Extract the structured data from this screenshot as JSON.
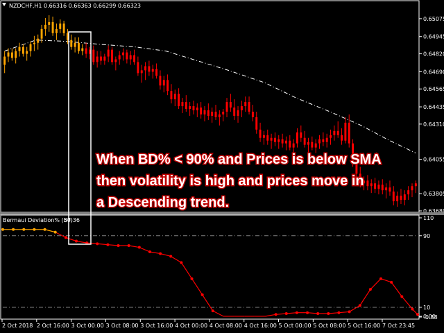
{
  "chart_header": {
    "symbol": "NZDCHF,H1",
    "ohlc": "0.66316 0.66363 0.66299 0.66323"
  },
  "indicator_header": {
    "name": "Bermaui Deviation% (50)",
    "value": "87.36"
  },
  "annotation": {
    "line1": "When BD% < 90% and Prices is below SMA",
    "line2": "then volatility is high and prices move in",
    "line3": "a Descending trend."
  },
  "colors": {
    "background": "#000000",
    "grid": "#ffffff",
    "candle_bull_before": "#ffa500",
    "candle_after": "#ff0000",
    "sma_line": "#ffffff",
    "indicator_high": "#ffa500",
    "indicator_low": "#ff0000",
    "level_line": "#808080"
  },
  "chart_data": [
    {
      "type": "candlestick",
      "title": "NZDCHF,H1",
      "y_ticks": [
        "0.65075",
        "0.64945",
        "0.64820",
        "0.64690",
        "0.64565",
        "0.64435",
        "0.64310",
        "0.64055",
        "0.63805",
        "0.63680"
      ],
      "x_ticks": [
        "2 Oct 2018",
        "2 Oct 16:00",
        "3 Oct 00:00",
        "3 Oct 08:00",
        "3 Oct 16:00",
        "4 Oct 00:00",
        "4 Oct 08:00",
        "4 Oct 16:00",
        "5 Oct 00:00",
        "5 Oct 08:00",
        "5 Oct 16:00",
        "7 Oct 23:45"
      ],
      "ylim": [
        0.6368,
        0.6514
      ],
      "sma_period": 50,
      "sma": [
        [
          0,
          0.6484
        ],
        [
          12,
          0.6492
        ],
        [
          24,
          0.6491
        ],
        [
          36,
          0.6489
        ],
        [
          50,
          0.6487
        ],
        [
          62,
          0.6484
        ],
        [
          74,
          0.6477
        ],
        [
          86,
          0.647
        ],
        [
          100,
          0.6461
        ],
        [
          112,
          0.645
        ],
        [
          125,
          0.644
        ],
        [
          137,
          0.643
        ],
        [
          148,
          0.6419
        ],
        [
          158,
          0.641
        ]
      ],
      "candles_ohlc": [
        [
          0.6474,
          0.6484,
          0.6468,
          0.648
        ],
        [
          0.648,
          0.6486,
          0.6476,
          0.6483
        ],
        [
          0.6483,
          0.6486,
          0.6477,
          0.6479
        ],
        [
          0.6479,
          0.6486,
          0.6475,
          0.6484
        ],
        [
          0.6484,
          0.649,
          0.648,
          0.6487
        ],
        [
          0.6487,
          0.6489,
          0.648,
          0.6482
        ],
        [
          0.6482,
          0.6487,
          0.6477,
          0.6484
        ],
        [
          0.6484,
          0.6491,
          0.648,
          0.6489
        ],
        [
          0.6489,
          0.6495,
          0.6484,
          0.649
        ],
        [
          0.649,
          0.6496,
          0.6485,
          0.6493
        ],
        [
          0.6493,
          0.6503,
          0.649,
          0.65
        ],
        [
          0.65,
          0.6508,
          0.6495,
          0.6503
        ],
        [
          0.6503,
          0.651,
          0.6498,
          0.6505
        ],
        [
          0.6505,
          0.6509,
          0.6495,
          0.6497
        ],
        [
          0.6497,
          0.6504,
          0.6492,
          0.65
        ],
        [
          0.65,
          0.6507,
          0.6497,
          0.6504
        ],
        [
          0.6504,
          0.6506,
          0.6495,
          0.6497
        ],
        [
          0.6497,
          0.65,
          0.6489,
          0.6492
        ],
        [
          0.6492,
          0.6496,
          0.6485,
          0.6487
        ],
        [
          0.6487,
          0.6494,
          0.6483,
          0.649
        ],
        [
          0.649,
          0.6494,
          0.6482,
          0.6484
        ],
        [
          0.6484,
          0.6489,
          0.6481,
          0.6486
        ],
        [
          0.6486,
          0.649,
          0.6479,
          0.6482
        ],
        [
          0.6482,
          0.6487,
          0.6478,
          0.6485
        ],
        [
          0.6485,
          0.6488,
          0.6474,
          0.6476
        ],
        [
          0.6476,
          0.6484,
          0.6472,
          0.648
        ],
        [
          0.648,
          0.6484,
          0.6474,
          0.6477
        ],
        [
          0.6477,
          0.6482,
          0.6474,
          0.648
        ],
        [
          0.648,
          0.6488,
          0.6476,
          0.6485
        ],
        [
          0.6485,
          0.6487,
          0.6474,
          0.6476
        ],
        [
          0.6476,
          0.648,
          0.647,
          0.6478
        ],
        [
          0.6478,
          0.6484,
          0.6474,
          0.6481
        ],
        [
          0.6481,
          0.6486,
          0.6477,
          0.6483
        ],
        [
          0.6483,
          0.6485,
          0.6475,
          0.6478
        ],
        [
          0.6478,
          0.6484,
          0.6474,
          0.6481
        ],
        [
          0.6481,
          0.6485,
          0.6474,
          0.6476
        ],
        [
          0.6476,
          0.648,
          0.6466,
          0.6468
        ],
        [
          0.6468,
          0.6474,
          0.6461,
          0.647
        ],
        [
          0.647,
          0.6476,
          0.6463,
          0.6473
        ],
        [
          0.6473,
          0.6477,
          0.6466,
          0.6469
        ],
        [
          0.6469,
          0.6474,
          0.6464,
          0.6471
        ],
        [
          0.6471,
          0.6475,
          0.6464,
          0.6466
        ],
        [
          0.6466,
          0.647,
          0.6456,
          0.6459
        ],
        [
          0.6459,
          0.6466,
          0.6454,
          0.6463
        ],
        [
          0.6463,
          0.6467,
          0.6452,
          0.6455
        ],
        [
          0.6455,
          0.646,
          0.6446,
          0.6449
        ],
        [
          0.6449,
          0.6456,
          0.6444,
          0.6453
        ],
        [
          0.6453,
          0.6457,
          0.6442,
          0.6444
        ],
        [
          0.6444,
          0.645,
          0.6439,
          0.6447
        ],
        [
          0.6447,
          0.6452,
          0.644,
          0.6442
        ],
        [
          0.6442,
          0.6447,
          0.6437,
          0.6444
        ],
        [
          0.6444,
          0.6448,
          0.6438,
          0.6441
        ],
        [
          0.6441,
          0.6446,
          0.6436,
          0.6443
        ],
        [
          0.6443,
          0.6447,
          0.6435,
          0.6438
        ],
        [
          0.6438,
          0.6444,
          0.6433,
          0.6441
        ],
        [
          0.6441,
          0.6446,
          0.6434,
          0.6437
        ],
        [
          0.6437,
          0.6443,
          0.6432,
          0.644
        ],
        [
          0.644,
          0.6445,
          0.6434,
          0.6436
        ],
        [
          0.6436,
          0.6441,
          0.643,
          0.6438
        ],
        [
          0.6438,
          0.6442,
          0.6433,
          0.644
        ],
        [
          0.644,
          0.645,
          0.6436,
          0.6447
        ],
        [
          0.6447,
          0.6453,
          0.644,
          0.6443
        ],
        [
          0.6443,
          0.6449,
          0.6434,
          0.6437
        ],
        [
          0.6437,
          0.6444,
          0.6432,
          0.6441
        ],
        [
          0.6441,
          0.6448,
          0.6436,
          0.6444
        ],
        [
          0.6444,
          0.6451,
          0.644,
          0.6447
        ],
        [
          0.6447,
          0.6451,
          0.6438,
          0.644
        ],
        [
          0.644,
          0.6445,
          0.6433,
          0.6436
        ],
        [
          0.6436,
          0.644,
          0.6424,
          0.6427
        ],
        [
          0.6427,
          0.6432,
          0.6418,
          0.6421
        ],
        [
          0.6421,
          0.6426,
          0.6416,
          0.6423
        ],
        [
          0.6423,
          0.6427,
          0.6416,
          0.6419
        ],
        [
          0.6419,
          0.6424,
          0.6413,
          0.6421
        ],
        [
          0.6421,
          0.6425,
          0.6415,
          0.6418
        ],
        [
          0.6418,
          0.6423,
          0.6413,
          0.642
        ],
        [
          0.642,
          0.6424,
          0.6414,
          0.6417
        ],
        [
          0.6417,
          0.6422,
          0.6412,
          0.6419
        ],
        [
          0.6419,
          0.6423,
          0.6412,
          0.6414
        ],
        [
          0.6414,
          0.642,
          0.641,
          0.6417
        ],
        [
          0.6417,
          0.6428,
          0.6414,
          0.6425
        ],
        [
          0.6425,
          0.643,
          0.6418,
          0.6421
        ],
        [
          0.6421,
          0.6426,
          0.6414,
          0.6416
        ],
        [
          0.6416,
          0.6421,
          0.641,
          0.6418
        ],
        [
          0.6418,
          0.6422,
          0.6412,
          0.6414
        ],
        [
          0.6414,
          0.642,
          0.641,
          0.6417
        ],
        [
          0.6417,
          0.6423,
          0.6413,
          0.642
        ],
        [
          0.642,
          0.6425,
          0.6415,
          0.6418
        ],
        [
          0.6418,
          0.6424,
          0.6414,
          0.6421
        ],
        [
          0.6421,
          0.6427,
          0.6416,
          0.6423
        ],
        [
          0.6423,
          0.643,
          0.6419,
          0.6426
        ],
        [
          0.6426,
          0.6433,
          0.6421,
          0.6423
        ],
        [
          0.6423,
          0.6428,
          0.6416,
          0.6419
        ],
        [
          0.6419,
          0.6436,
          0.6417,
          0.6432
        ],
        [
          0.6432,
          0.6438,
          0.6414,
          0.6417
        ],
        [
          0.6417,
          0.642,
          0.64,
          0.6403
        ],
        [
          0.6403,
          0.6408,
          0.6392,
          0.6395
        ],
        [
          0.6395,
          0.64,
          0.6385,
          0.6388
        ],
        [
          0.6388,
          0.6393,
          0.6383,
          0.639
        ],
        [
          0.639,
          0.6394,
          0.6383,
          0.6386
        ],
        [
          0.6386,
          0.6391,
          0.6381,
          0.6388
        ],
        [
          0.6388,
          0.6392,
          0.6381,
          0.6384
        ],
        [
          0.6384,
          0.639,
          0.638,
          0.6387
        ],
        [
          0.6387,
          0.6391,
          0.638,
          0.6383
        ],
        [
          0.6383,
          0.6388,
          0.6377,
          0.6385
        ],
        [
          0.6385,
          0.639,
          0.6379,
          0.6382
        ],
        [
          0.6382,
          0.6386,
          0.6372,
          0.6375
        ],
        [
          0.6375,
          0.6382,
          0.6371,
          0.6379
        ],
        [
          0.6379,
          0.6384,
          0.6373,
          0.6376
        ],
        [
          0.6376,
          0.6383,
          0.6372,
          0.638
        ],
        [
          0.638,
          0.6386,
          0.6376,
          0.6383
        ],
        [
          0.6383,
          0.6388,
          0.6378,
          0.6386
        ],
        [
          0.6386,
          0.639,
          0.6381,
          0.6388
        ]
      ]
    },
    {
      "type": "line",
      "title": "Bermaui Deviation% (50)",
      "y_ticks": [
        "110",
        "90",
        "10",
        "0.00",
        "-0.88"
      ],
      "levels": [
        90,
        10
      ],
      "ylim": [
        -0.88,
        110
      ],
      "x": [
        0,
        4,
        8,
        12,
        16,
        20,
        24,
        28,
        32,
        36,
        40,
        44,
        48,
        52,
        56,
        60,
        64,
        68,
        72,
        76,
        80,
        84,
        88,
        92,
        96,
        100,
        104,
        108,
        112,
        116,
        120,
        124,
        128,
        132,
        136,
        140,
        144,
        148,
        152,
        156,
        158
      ],
      "values": [
        97,
        97,
        97,
        97,
        97,
        94,
        88,
        84,
        82,
        81,
        80,
        79,
        79,
        77,
        72,
        70,
        67,
        60,
        42,
        24,
        6,
        0,
        0,
        0,
        0,
        0,
        2,
        3,
        4,
        4,
        3,
        3,
        4,
        5,
        12,
        30,
        42,
        38,
        22,
        8,
        2
      ]
    }
  ]
}
